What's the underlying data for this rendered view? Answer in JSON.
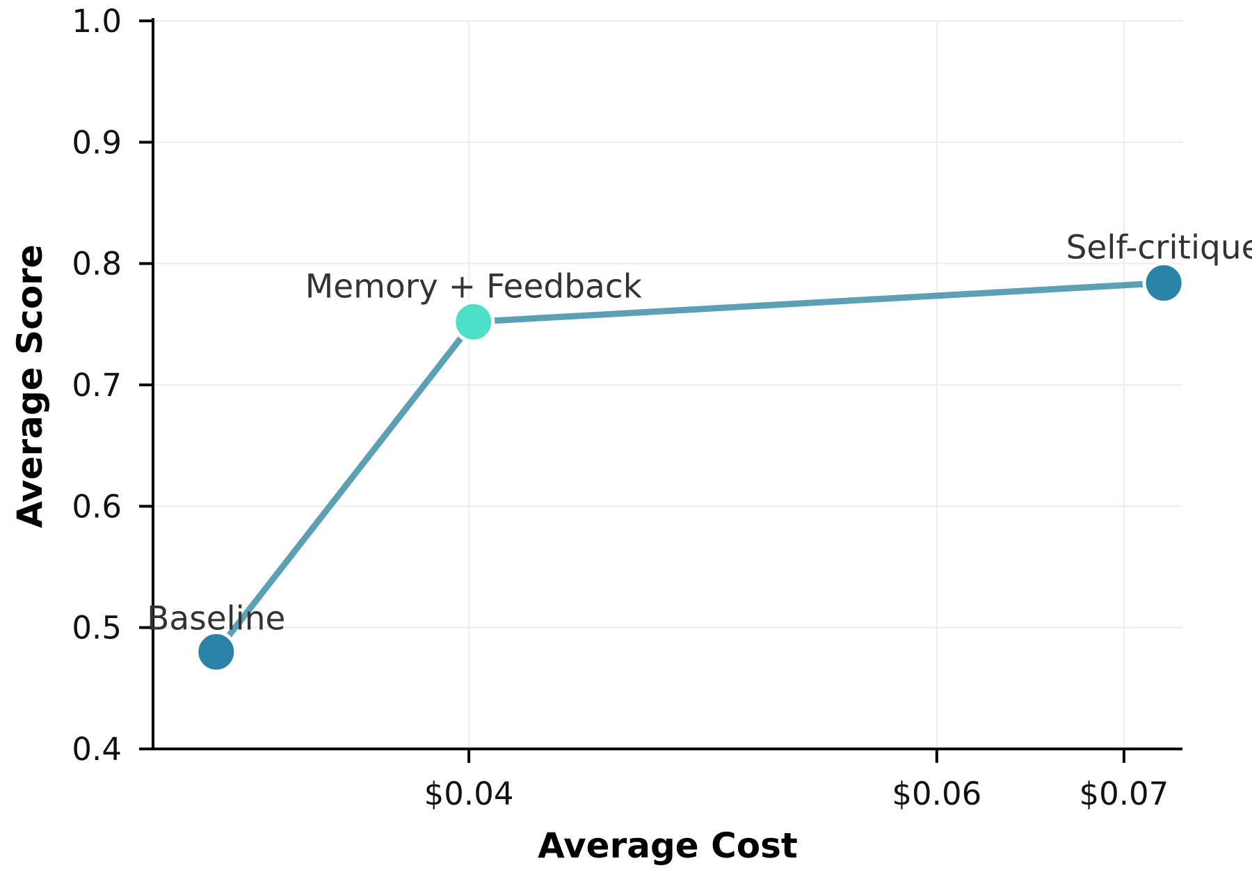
{
  "chart_data": {
    "type": "line",
    "title": "",
    "xlabel": "Average Cost",
    "ylabel": "Average Score",
    "xlim": [
      0.0265,
      0.0705
    ],
    "ylim": [
      0.4,
      1.0
    ],
    "x_ticks": [
      {
        "value": 0.04,
        "label": "$0.04"
      },
      {
        "value": 0.06,
        "label": "$0.06"
      },
      {
        "value": 0.068,
        "label": "$0.07"
      }
    ],
    "y_ticks": [
      {
        "value": 0.4,
        "label": "0.4"
      },
      {
        "value": 0.5,
        "label": "0.5"
      },
      {
        "value": 0.6,
        "label": "0.6"
      },
      {
        "value": 0.7,
        "label": "0.7"
      },
      {
        "value": 0.8,
        "label": "0.8"
      },
      {
        "value": 0.9,
        "label": "0.9"
      },
      {
        "value": 1.0,
        "label": "1.0"
      }
    ],
    "grid": true,
    "series": [
      {
        "points": [
          {
            "label": "Baseline",
            "x": 0.0292,
            "y": 0.48,
            "color": "#2b83a8"
          },
          {
            "label": "Memory + Feedback",
            "x": 0.0402,
            "y": 0.752,
            "color": "#4de0c8"
          },
          {
            "label": "Self-critique",
            "x": 0.0697,
            "y": 0.784,
            "color": "#2b83a8"
          }
        ],
        "line_color": "#5ba0b4"
      }
    ]
  }
}
